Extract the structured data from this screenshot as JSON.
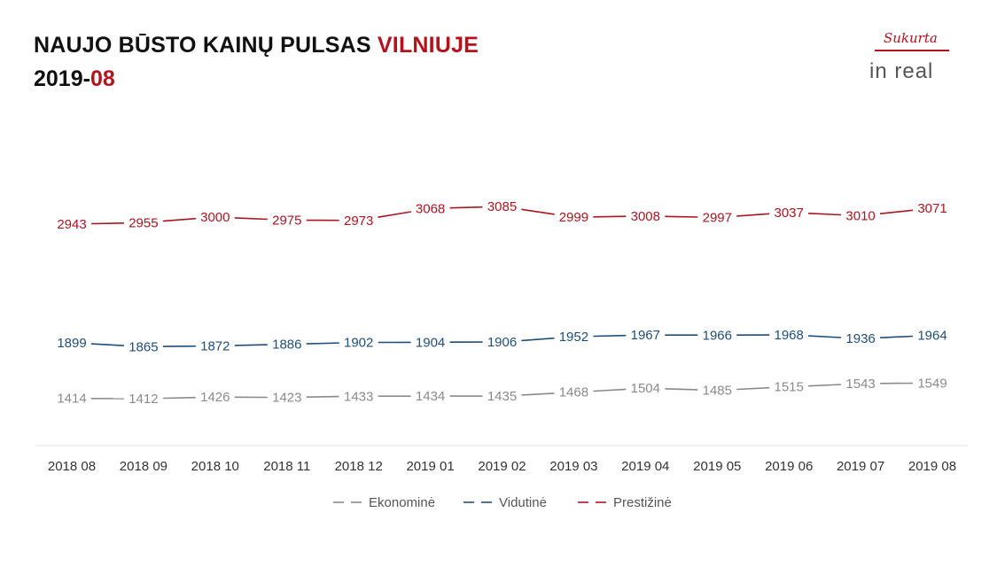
{
  "header": {
    "title_main": "NAUJO BŪSTO KAINŲ PULSAS ",
    "title_accent": "VILNIUJE",
    "subtitle_main": "2019-",
    "subtitle_accent": "08"
  },
  "logo": {
    "tagline": "Sukurta",
    "brand": "in real"
  },
  "chart_data": {
    "type": "line",
    "categories": [
      "2018 08",
      "2018 09",
      "2018 10",
      "2018 11",
      "2018 12",
      "2019 01",
      "2019 02",
      "2019 03",
      "2019 04",
      "2019 05",
      "2019 06",
      "2019 07",
      "2019 08"
    ],
    "series": [
      {
        "name": "Ekonominė",
        "color": "#8a8a8a",
        "values": [
          1414,
          1412,
          1426,
          1423,
          1433,
          1434,
          1435,
          1468,
          1504,
          1485,
          1515,
          1543,
          1549
        ]
      },
      {
        "name": "Vidutinė",
        "color": "#1f4e79",
        "values": [
          1899,
          1865,
          1872,
          1886,
          1902,
          1904,
          1906,
          1952,
          1967,
          1966,
          1968,
          1936,
          1964
        ]
      },
      {
        "name": "Prestižinė",
        "color": "#a8161f",
        "values": [
          2943,
          2955,
          3000,
          2975,
          2973,
          3068,
          3085,
          2999,
          3008,
          2997,
          3037,
          3010,
          3071
        ]
      }
    ],
    "legend_position": "bottom",
    "grid": false
  }
}
